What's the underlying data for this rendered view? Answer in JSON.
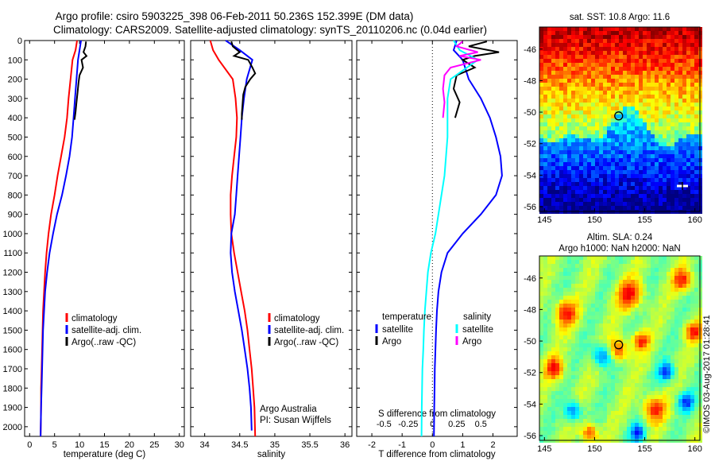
{
  "title": {
    "line1": "Argo profile: csiro 5903225_398 06-Feb-2011 50.236S 152.399E (DM data)",
    "line2": "Climatology: CARS2009. Satellite-adjusted climatology: synTS_20110206.nc (0.04d earlier)"
  },
  "colors": {
    "climatology": "#ff0000",
    "satellite": "#0000ff",
    "argo": "#000000",
    "satellite_salinity": "#00ffff",
    "argo_salinity": "#ff00ff"
  },
  "chart_data": [
    {
      "type": "line",
      "id": "temperature",
      "xlabel": "temperature (deg C)",
      "ylabel": "",
      "xlim": [
        -1,
        31
      ],
      "ylim": [
        2050,
        0
      ],
      "xticks": [
        0,
        5,
        10,
        15,
        20,
        25,
        30
      ],
      "xtick_labels": [
        "0",
        "5",
        "10",
        "15",
        "20",
        "25",
        "30"
      ],
      "yticks": [
        0,
        100,
        200,
        300,
        400,
        500,
        600,
        700,
        800,
        900,
        1000,
        1100,
        1200,
        1300,
        1400,
        1500,
        1600,
        1700,
        1800,
        1900,
        2000
      ],
      "ytick_labels": [
        "0",
        "100",
        "200",
        "300",
        "400",
        "500",
        "600",
        "700",
        "800",
        "900",
        "1000",
        "1100",
        "1200",
        "1300",
        "1400",
        "1500",
        "1600",
        "1700",
        "1800",
        "1900",
        "2000"
      ],
      "legend": [
        "climatology",
        "satellite-adj. clim.",
        "Argo(..raw -QC)"
      ],
      "series": [
        {
          "name": "climatology",
          "color": "#ff0000",
          "x": [
            9.5,
            9.2,
            8.6,
            8.2,
            7.8,
            7.5,
            7.0,
            6.3,
            5.6,
            5.0,
            4.3,
            3.8,
            3.4,
            3.1,
            2.9,
            2.7,
            2.6,
            2.5,
            2.4,
            2.3,
            2.3,
            2.2
          ],
          "y": [
            0,
            50,
            100,
            200,
            300,
            400,
            500,
            600,
            700,
            800,
            900,
            1000,
            1100,
            1200,
            1300,
            1400,
            1500,
            1600,
            1700,
            1800,
            1900,
            2050
          ]
        },
        {
          "name": "satellite-adj. clim.",
          "color": "#0000ff",
          "x": [
            10.3,
            10.0,
            9.7,
            9.4,
            9.1,
            8.8,
            8.5,
            8.0,
            7.3,
            6.5,
            5.5,
            4.7,
            4.0,
            3.5,
            3.1,
            2.9,
            2.7,
            2.6,
            2.5,
            2.4,
            2.3,
            2.2
          ],
          "y": [
            0,
            50,
            100,
            200,
            300,
            400,
            500,
            600,
            700,
            800,
            900,
            1000,
            1100,
            1200,
            1300,
            1400,
            1500,
            1600,
            1700,
            1800,
            1900,
            2050
          ]
        },
        {
          "name": "Argo(..raw -QC)",
          "color": "#000000",
          "x": [
            11.3,
            11.2,
            10.8,
            11.4,
            10.4,
            10.7,
            10.0,
            9.8,
            9.6,
            9.4,
            9.2,
            9.0
          ],
          "y": [
            5,
            30,
            60,
            80,
            100,
            140,
            180,
            220,
            270,
            320,
            370,
            410
          ]
        }
      ]
    },
    {
      "type": "line",
      "id": "salinity",
      "xlabel": "salinity",
      "ylabel": "",
      "xlim": [
        33.8,
        36.1
      ],
      "ylim": [
        2050,
        0
      ],
      "xticks": [
        34,
        34.5,
        35,
        35.5,
        36
      ],
      "xtick_labels": [
        "34",
        "34.5",
        "35",
        "35.5",
        "36"
      ],
      "legend": [
        "climatology",
        "satellite-adj. clim.",
        "Argo(..raw -QC)"
      ],
      "annotation": [
        "Argo Australia",
        "PI: Susan Wijffels"
      ],
      "series": [
        {
          "name": "climatology",
          "color": "#ff0000",
          "x": [
            34.08,
            34.12,
            34.2,
            34.4,
            34.44,
            34.46,
            34.45,
            34.42,
            34.39,
            34.37,
            34.37,
            34.38,
            34.42,
            34.47,
            34.52,
            34.57,
            34.61,
            34.64,
            34.67,
            34.69,
            34.71,
            34.72
          ],
          "y": [
            0,
            50,
            100,
            200,
            300,
            400,
            500,
            600,
            700,
            800,
            900,
            1000,
            1100,
            1200,
            1300,
            1400,
            1500,
            1600,
            1700,
            1800,
            1900,
            2050
          ]
        },
        {
          "name": "satellite-adj. clim.",
          "color": "#0000ff",
          "x": [
            34.3,
            34.5,
            34.68,
            34.6,
            34.56,
            34.53,
            34.51,
            34.49,
            34.47,
            34.45,
            34.43,
            34.38,
            34.37,
            34.39,
            34.43,
            34.48,
            34.53,
            34.57,
            34.61,
            34.64,
            34.66,
            34.67
          ],
          "y": [
            0,
            50,
            100,
            200,
            300,
            400,
            500,
            600,
            700,
            800,
            900,
            1000,
            1100,
            1200,
            1300,
            1400,
            1500,
            1600,
            1700,
            1800,
            1900,
            2020
          ]
        },
        {
          "name": "Argo(..raw -QC)",
          "color": "#000000",
          "x": [
            34.38,
            34.4,
            34.5,
            34.42,
            34.62,
            34.68,
            34.72,
            34.65,
            34.58,
            34.55,
            34.54,
            34.53,
            34.53
          ],
          "y": [
            5,
            30,
            60,
            80,
            100,
            140,
            170,
            200,
            240,
            280,
            330,
            380,
            410
          ]
        }
      ]
    },
    {
      "type": "line",
      "id": "difference",
      "xlabel": "T difference from climatology",
      "xlabel2": "S difference from climatology",
      "xlim": [
        -2.5,
        2.8
      ],
      "ylim": [
        2050,
        0
      ],
      "xticks": [
        -2,
        -1,
        0,
        1,
        2
      ],
      "xtick_labels": [
        "-2",
        "-1",
        "0",
        "1",
        "2"
      ],
      "sticks_at_T": [
        -1.6,
        -0.8,
        0,
        0.8,
        1.6
      ],
      "sticks_labels": [
        "-0.5",
        "-0.25",
        "0",
        "0.25",
        "0.5"
      ],
      "legend_t_title": "temperature",
      "legend_s_title": "salinity",
      "legend_t": [
        "satellite",
        "Argo"
      ],
      "legend_s": [
        "satellite",
        "Argo"
      ],
      "series": [
        {
          "name": "satellite",
          "color": "#0000ff",
          "x": [
            0.8,
            0.7,
            1.0,
            1.2,
            1.6,
            1.9,
            2.1,
            2.25,
            2.3,
            2.1,
            1.6,
            1.0,
            0.5,
            0.3,
            0.2,
            0.15,
            0.12,
            0.1,
            0.08,
            0.07,
            0.06,
            0.05
          ],
          "y": [
            0,
            50,
            100,
            200,
            300,
            400,
            500,
            600,
            700,
            800,
            900,
            1000,
            1100,
            1200,
            1300,
            1400,
            1500,
            1600,
            1700,
            1800,
            1900,
            2050
          ]
        },
        {
          "name": "Argo",
          "color": "#000000",
          "x": [
            1.8,
            1.2,
            2.2,
            1.4,
            1.0,
            1.4,
            0.8,
            0.7,
            0.9,
            0.75
          ],
          "y": [
            5,
            30,
            60,
            80,
            100,
            140,
            180,
            250,
            320,
            400
          ]
        },
        {
          "name": "satellite",
          "color": "#00ffff",
          "x": [
            0.7,
            0.9,
            1.5,
            0.6,
            0.5,
            0.5,
            0.5,
            0.45,
            0.4,
            0.3,
            0.2,
            0.1,
            -0.05,
            -0.15,
            -0.2,
            -0.25,
            -0.28,
            -0.3,
            -0.33,
            -0.34,
            -0.35,
            -0.36
          ],
          "y": [
            0,
            50,
            100,
            200,
            300,
            400,
            500,
            600,
            700,
            800,
            900,
            1000,
            1100,
            1200,
            1300,
            1400,
            1500,
            1600,
            1700,
            1800,
            1900,
            2050
          ]
        },
        {
          "name": "Argo",
          "color": "#ff00ff",
          "x": [
            1.0,
            0.8,
            1.5,
            0.9,
            1.6,
            0.6,
            0.4,
            0.35,
            0.4,
            0.35
          ],
          "y": [
            5,
            30,
            60,
            80,
            100,
            140,
            180,
            250,
            320,
            400
          ]
        }
      ]
    },
    {
      "type": "heatmap",
      "id": "sst_map",
      "title": "sat. SST: 10.8  Argo: 11.6",
      "xlim": [
        144.5,
        160.5
      ],
      "ylim": [
        -56.3,
        -44.6
      ],
      "xticks": [
        145,
        150,
        155,
        160
      ],
      "xtick_labels": [
        "145",
        "150",
        "155",
        "160"
      ],
      "yticks": [
        -46,
        -48,
        -50,
        -52,
        -54,
        -56
      ],
      "ytick_labels": [
        "-46",
        "-48",
        "-50",
        "-52",
        "-54",
        "-56"
      ],
      "marker": {
        "lon": 152.4,
        "lat": -50.24
      }
    },
    {
      "type": "heatmap",
      "id": "sla_map",
      "title": "Altim. SLA: 0.24",
      "subtitle": "Argo h1000: NaN  h2000: NaN",
      "xlim": [
        144.5,
        160.5
      ],
      "ylim": [
        -56.3,
        -44.6
      ],
      "xticks": [
        145,
        150,
        155,
        160
      ],
      "xtick_labels": [
        "145",
        "150",
        "155",
        "160"
      ],
      "yticks": [
        -46,
        -48,
        -50,
        -52,
        -54,
        -56
      ],
      "ytick_labels": [
        "-46",
        "-48",
        "-50",
        "-52",
        "-54",
        "-56"
      ],
      "marker": {
        "lon": 152.4,
        "lat": -50.24
      }
    }
  ],
  "credit": "©IMOS 03-Aug-2017 01:28:41"
}
